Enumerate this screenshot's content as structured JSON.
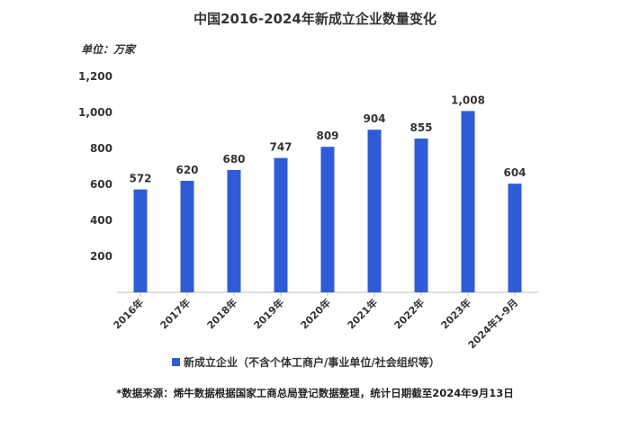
{
  "header": {
    "title": "中国2016-2024年新成立企业数量变化",
    "unit": "单位：万家"
  },
  "footer": {
    "note": "*数据来源：烯牛数据根据国家工商总局登记数据整理，统计日期截至2024年9月13日"
  },
  "chart_data": {
    "type": "bar",
    "title": "中国2016-2024年新成立企业数量变化",
    "xlabel": "",
    "ylabel": "",
    "unit": "单位：万家",
    "categories": [
      "2016年",
      "2017年",
      "2018年",
      "2019年",
      "2020年",
      "2021年",
      "2022年",
      "2023年",
      "2024年1-9月"
    ],
    "series": [
      {
        "name": "新成立企业（不含个体工商户/事业单位/社会组织等）",
        "values": [
          572,
          620,
          680,
          747,
          809,
          904,
          855,
          1008,
          604
        ],
        "value_labels": [
          "572",
          "620",
          "680",
          "747",
          "809",
          "904",
          "855",
          "1,008",
          "604"
        ],
        "color": "#2f5cd6"
      }
    ],
    "ylim": [
      0,
      1200
    ],
    "yticks": [
      200,
      400,
      600,
      800,
      1000,
      1200
    ],
    "ytick_labels": [
      "200",
      "400",
      "600",
      "800",
      "1,000",
      "1,200"
    ],
    "grid": false,
    "legend": "bottom-center"
  }
}
